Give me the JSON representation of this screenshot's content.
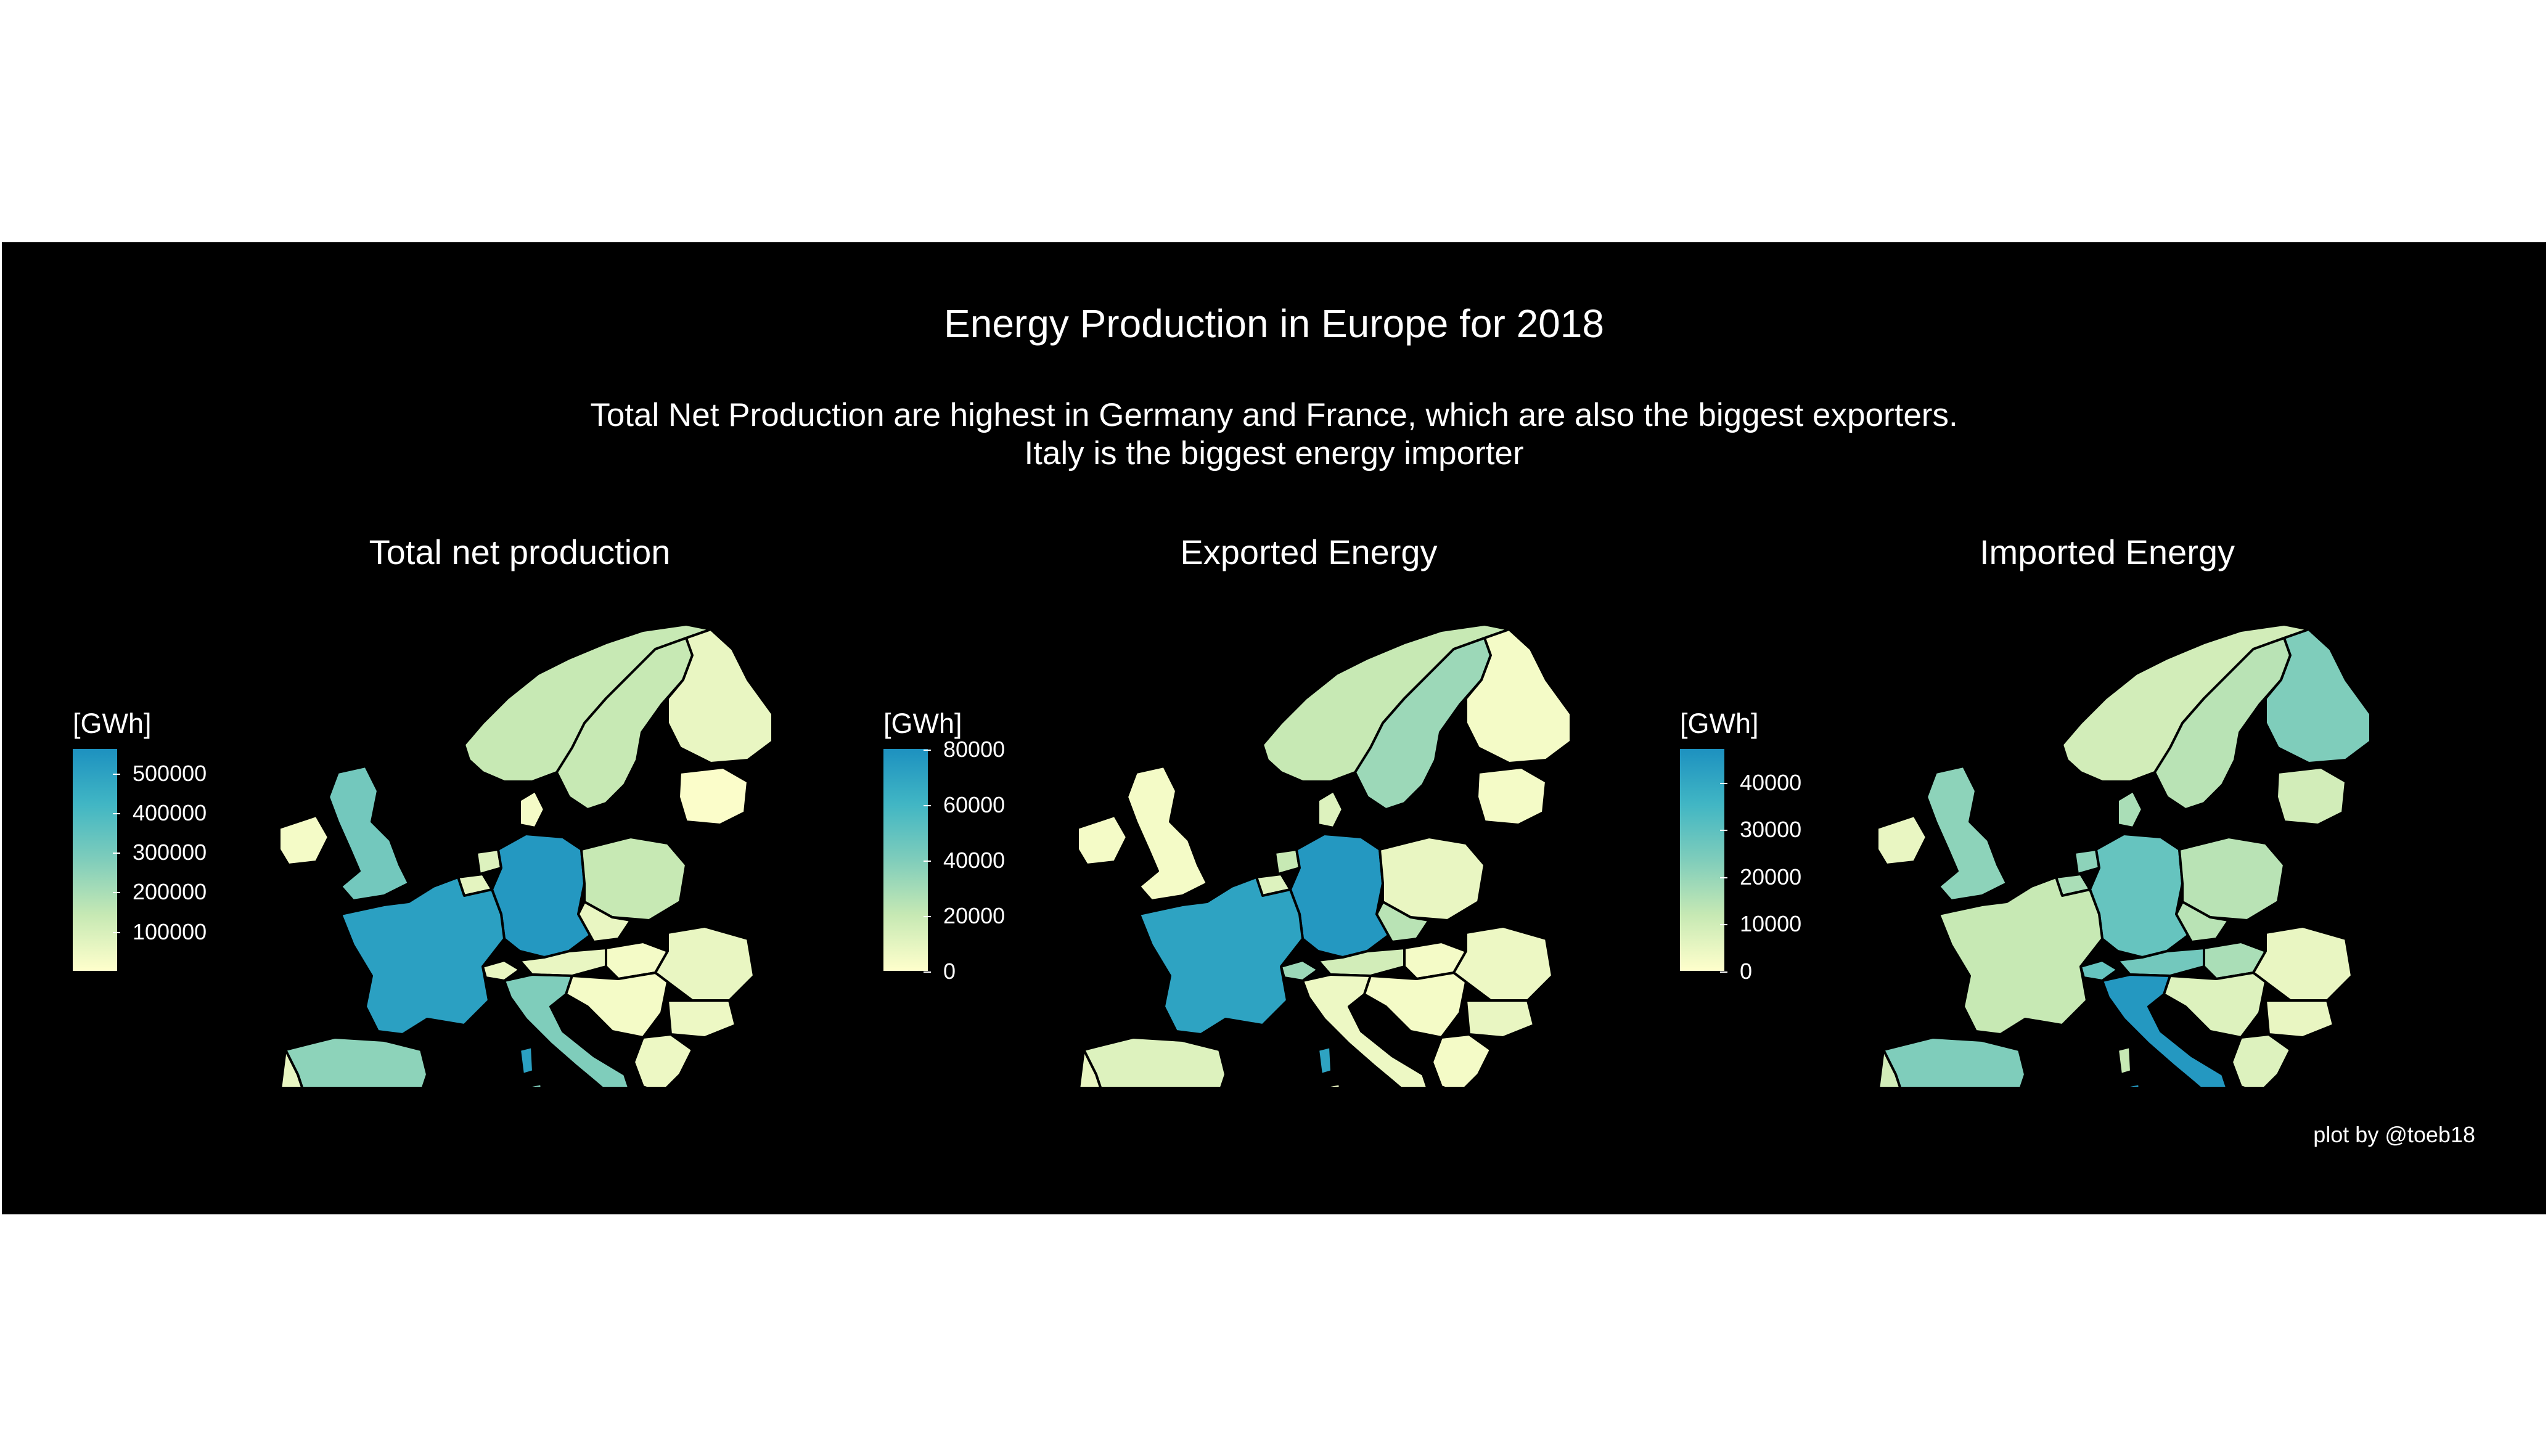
{
  "title": "Energy Production in Europe for 2018",
  "subtitle_line1": "Total Net Production are highest in Germany and France, which are also the biggest exporters.",
  "subtitle_line2": "Italy is the biggest energy importer",
  "caption": "plot by @toeb18",
  "colors": {
    "background": "#000000",
    "scale_low": "#ffffcc",
    "scale_mid": "#7fcdbb",
    "scale_high": "#1d91c0",
    "border": "#000000"
  },
  "maps": [
    {
      "title": "Total net production",
      "legend": {
        "title": "[GWh]",
        "min": 0,
        "max": 560000,
        "ticks": [
          "100000",
          "200000",
          "300000",
          "400000",
          "500000"
        ],
        "tick_values": [
          100000,
          200000,
          300000,
          400000,
          500000
        ]
      },
      "country_levels": {
        "Germany": 0.95,
        "France": 0.9,
        "United Kingdom": 0.55,
        "Spain": 0.45,
        "Italy": 0.5,
        "Sweden": 0.25,
        "Norway": 0.25,
        "Finland": 0.1,
        "Poland": 0.25,
        "Ireland": 0.05,
        "Portugal": 0.1,
        "Greece": 0.08,
        "Romania": 0.1,
        "Netherlands": 0.15,
        "Belgium": 0.12,
        "Austria": 0.1,
        "Czechia": 0.1,
        "Switzerland": 0.1,
        "Hungary": 0.05,
        "Balkans": 0.05,
        "Baltics": 0.02,
        "Denmark": 0.05,
        "Bulgaria": 0.08,
        "Sicily": 0.5,
        "Sardinia": 0.5,
        "Corsica": 0.9
      }
    },
    {
      "title": "Exported Energy",
      "legend": {
        "title": "[GWh]",
        "min": 0,
        "max": 80000,
        "ticks": [
          "0",
          "20000",
          "40000",
          "60000",
          "80000"
        ],
        "tick_values": [
          0,
          20000,
          40000,
          60000,
          80000
        ]
      },
      "country_levels": {
        "Germany": 0.95,
        "France": 0.88,
        "United Kingdom": 0.05,
        "Spain": 0.15,
        "Italy": 0.08,
        "Sweden": 0.4,
        "Norway": 0.25,
        "Finland": 0.05,
        "Poland": 0.1,
        "Ireland": 0.05,
        "Portugal": 0.1,
        "Greece": 0.05,
        "Romania": 0.08,
        "Netherlands": 0.25,
        "Belgium": 0.15,
        "Austria": 0.2,
        "Czechia": 0.3,
        "Switzerland": 0.4,
        "Hungary": 0.05,
        "Balkans": 0.05,
        "Baltics": 0.05,
        "Denmark": 0.15,
        "Bulgaria": 0.1,
        "Sicily": 0.08,
        "Sardinia": 0.08,
        "Corsica": 0.88
      }
    },
    {
      "title": "Imported Energy",
      "legend": {
        "title": "[GWh]",
        "min": 0,
        "max": 47000,
        "ticks": [
          "0",
          "10000",
          "20000",
          "30000",
          "40000"
        ],
        "tick_values": [
          0,
          10000,
          20000,
          30000,
          40000
        ]
      },
      "country_levels": {
        "Germany": 0.6,
        "France": 0.25,
        "United Kingdom": 0.45,
        "Spain": 0.5,
        "Italy": 0.95,
        "Sweden": 0.3,
        "Norway": 0.2,
        "Finland": 0.5,
        "Poland": 0.3,
        "Ireland": 0.1,
        "Portugal": 0.2,
        "Greece": 0.15,
        "Romania": 0.1,
        "Netherlands": 0.45,
        "Belgium": 0.35,
        "Austria": 0.55,
        "Czechia": 0.3,
        "Switzerland": 0.6,
        "Hungary": 0.35,
        "Balkans": 0.15,
        "Baltics": 0.2,
        "Denmark": 0.35,
        "Bulgaria": 0.1,
        "Sicily": 0.95,
        "Sardinia": 0.95,
        "Corsica": 0.25
      }
    }
  ]
}
